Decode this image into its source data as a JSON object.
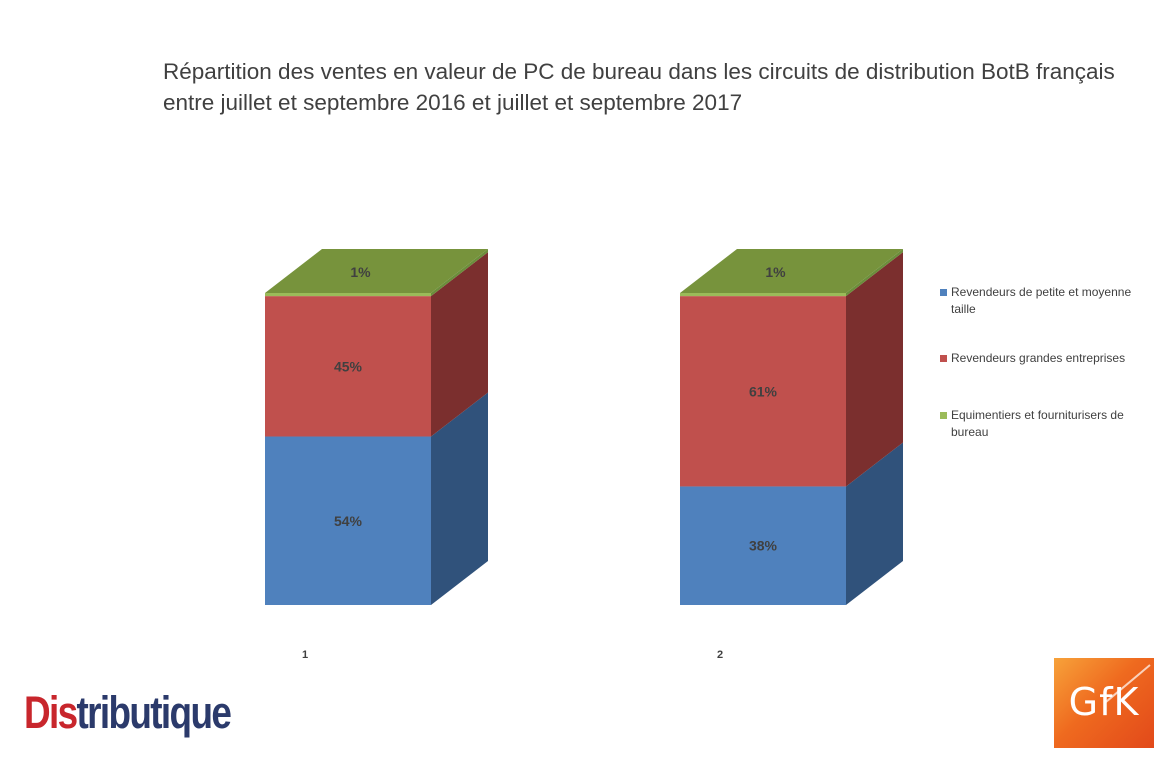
{
  "chart_data": {
    "type": "bar",
    "stacked": true,
    "style": "3d-100-percent",
    "title": "Répartition des ventes en valeur de PC de bureau dans les circuits de distribution BotB français entre juillet et septembre 2016 et juillet et septembre 2017",
    "categories": [
      "1",
      "2"
    ],
    "series": [
      {
        "name": "Revendeurs de petite et moyenne taille",
        "values": [
          54,
          38
        ],
        "color": "#4f81bd",
        "side_color": "#30527b"
      },
      {
        "name": "Revendeurs grandes entreprises",
        "values": [
          45,
          61
        ],
        "color": "#c0504d",
        "side_color": "#7b2f2e"
      },
      {
        "name": "Equimentiers et fourniturisers de bureau",
        "values": [
          1,
          1
        ],
        "color": "#9bbb59",
        "side_color": "#6b8e3b"
      }
    ],
    "labels": [
      [
        "54%",
        "45%",
        "1%"
      ],
      [
        "38%",
        "61%",
        "1%"
      ]
    ],
    "top_color": "#77933c",
    "legend_position": "right",
    "grid": false
  },
  "brand": {
    "part1": "Dis",
    "part2": "tributique"
  },
  "gfk": {
    "text": "GfK"
  }
}
